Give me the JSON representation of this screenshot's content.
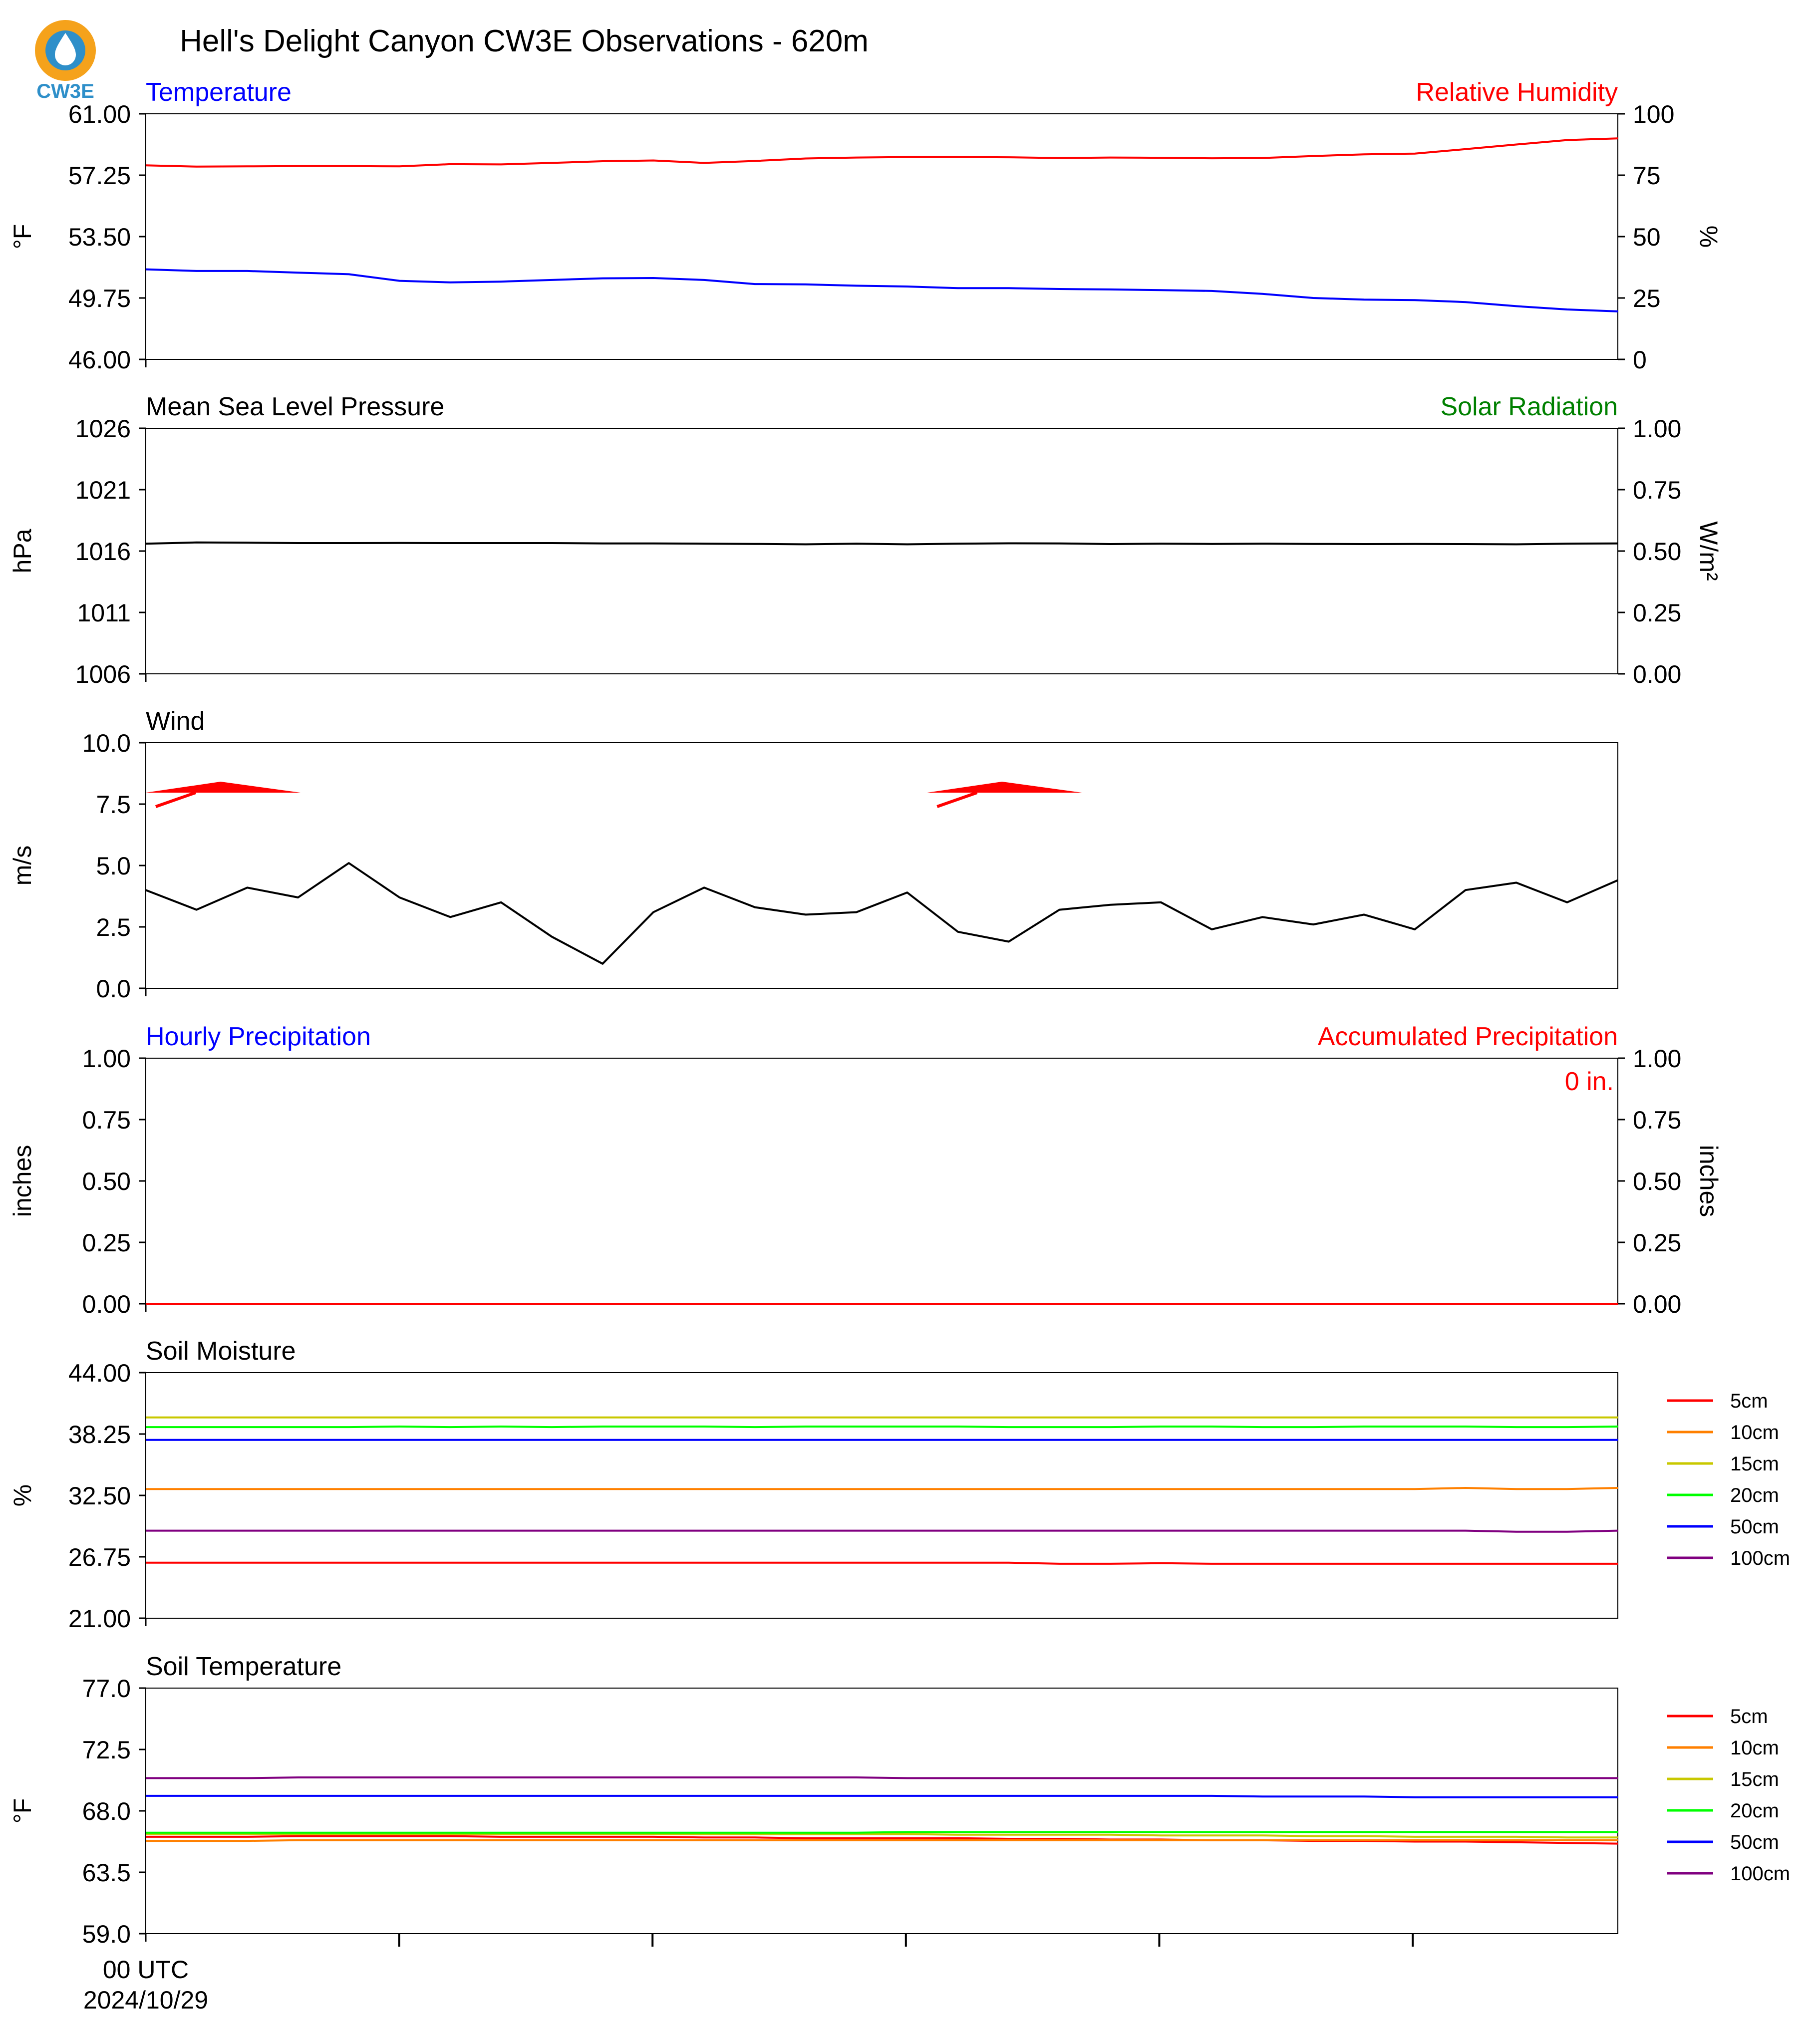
{
  "title": "Hell's Delight Canyon CW3E Observations - 620m",
  "logo": {
    "text": "CW3E",
    "icon": "cw3e-drop-logo",
    "colors": {
      "orange": "#F5A21B",
      "blue": "#2E8FC9"
    }
  },
  "x_axis": {
    "start_label": "00 UTC",
    "date_label": "2024/10/29"
  },
  "chart_data": [
    {
      "type": "line",
      "id": "temp_rh",
      "title_left": "Temperature",
      "title_right": "Relative Humidity",
      "title_left_color": "#0000FF",
      "title_right_color": "#FF0000",
      "ylabel": "°F",
      "ylabel_right": "%",
      "ylim": [
        46,
        61
      ],
      "yticks": [
        "61.00",
        "57.25",
        "53.50",
        "49.75",
        "46.00"
      ],
      "ylim_right": [
        0,
        100
      ],
      "yticks_right": [
        "100",
        "75",
        "50",
        "25",
        "0"
      ],
      "x": [
        0,
        1,
        2,
        3,
        4,
        5,
        6,
        7,
        8,
        9,
        10,
        11,
        12,
        13,
        14,
        15,
        16,
        17,
        18,
        19,
        20,
        21,
        22,
        23,
        24,
        25,
        26,
        27,
        28,
        29
      ],
      "series": [
        {
          "color": "#0000FF",
          "axis": "left",
          "values": [
            51.5,
            51.4,
            51.4,
            51.3,
            51.2,
            50.8,
            50.7,
            50.75,
            50.85,
            50.95,
            50.97,
            50.85,
            50.6,
            50.58,
            50.5,
            50.45,
            50.35,
            50.35,
            50.3,
            50.27,
            50.23,
            50.18,
            50.0,
            49.75,
            49.65,
            49.62,
            49.5,
            49.25,
            49.05,
            48.93
          ]
        },
        {
          "color": "#FF0000",
          "axis": "right",
          "values": [
            79.0,
            78.5,
            78.6,
            78.7,
            78.7,
            78.6,
            79.5,
            79.4,
            80.0,
            80.7,
            81.0,
            80.0,
            80.8,
            81.8,
            82.2,
            82.4,
            82.4,
            82.3,
            82.0,
            82.2,
            82.1,
            81.9,
            82.0,
            82.8,
            83.5,
            83.8,
            85.6,
            87.5,
            89.3,
            90.0
          ]
        }
      ]
    },
    {
      "type": "line",
      "id": "pressure",
      "title_left": "Mean Sea Level Pressure",
      "title_right": "Solar Radiation",
      "title_left_color": "#000000",
      "title_right_color": "#008000",
      "ylabel": "hPa",
      "ylabel_right": "W/m²",
      "ylim": [
        1006,
        1026
      ],
      "yticks": [
        "1026",
        "1021",
        "1016",
        "1011",
        "1006"
      ],
      "ylim_right": [
        0,
        1
      ],
      "yticks_right": [
        "1.00",
        "0.75",
        "0.50",
        "0.25",
        "0.00"
      ],
      "x": [
        0,
        1,
        2,
        3,
        4,
        5,
        6,
        7,
        8,
        9,
        10,
        11,
        12,
        13,
        14,
        15,
        16,
        17,
        18,
        19,
        20,
        21,
        22,
        23,
        24,
        25,
        26,
        27,
        28,
        29
      ],
      "series": [
        {
          "color": "#000000",
          "axis": "left",
          "values": [
            1016.6,
            1016.7,
            1016.68,
            1016.65,
            1016.65,
            1016.66,
            1016.65,
            1016.65,
            1016.65,
            1016.62,
            1016.62,
            1016.6,
            1016.58,
            1016.55,
            1016.6,
            1016.55,
            1016.6,
            1016.63,
            1016.62,
            1016.57,
            1016.6,
            1016.58,
            1016.6,
            1016.58,
            1016.57,
            1016.58,
            1016.57,
            1016.55,
            1016.6,
            1016.62
          ]
        }
      ]
    },
    {
      "type": "line",
      "id": "wind",
      "title_left": "Wind",
      "title_left_color": "#000000",
      "ylabel": "m/s",
      "ylim": [
        0,
        10
      ],
      "yticks": [
        "10.0",
        "7.5",
        "5.0",
        "2.5",
        "0.0"
      ],
      "x": [
        0,
        1,
        2,
        3,
        4,
        5,
        6,
        7,
        8,
        9,
        10,
        11,
        12,
        13,
        14,
        15,
        16,
        17,
        18,
        19,
        20,
        21,
        22,
        23,
        24,
        25,
        26,
        27,
        28,
        29
      ],
      "series": [
        {
          "color": "#000000",
          "axis": "left",
          "values": [
            4.0,
            3.2,
            4.1,
            3.7,
            5.1,
            3.7,
            2.9,
            3.5,
            2.1,
            1.0,
            3.1,
            4.1,
            3.3,
            3.0,
            3.1,
            3.9,
            2.3,
            1.9,
            3.2,
            3.4,
            3.5,
            2.4,
            2.9,
            2.6,
            3.0,
            2.4,
            4.0,
            4.3,
            3.5,
            4.4
          ]
        }
      ],
      "barbs": [
        {
          "x": 0,
          "color": "#FF0000"
        },
        {
          "x": 15,
          "color": "#FF0000"
        }
      ]
    },
    {
      "type": "line",
      "id": "precip",
      "title_left": "Hourly Precipitation",
      "title_right": "Accumulated Precipitation",
      "title_left_color": "#0000FF",
      "title_right_color": "#FF0000",
      "ylabel": "inches",
      "ylabel_right": "inches",
      "ylim": [
        0,
        1
      ],
      "yticks": [
        "1.00",
        "0.75",
        "0.50",
        "0.25",
        "0.00"
      ],
      "ylim_right": [
        0,
        1
      ],
      "yticks_right": [
        "1.00",
        "0.75",
        "0.50",
        "0.25",
        "0.00"
      ],
      "annotation": "0 in.",
      "annotation_color": "#FF0000",
      "x": [
        0,
        29
      ],
      "series": [
        {
          "color": "#0000FF",
          "axis": "left",
          "values": [
            0,
            0
          ]
        },
        {
          "color": "#FF0000",
          "axis": "right",
          "values": [
            0,
            0
          ]
        }
      ]
    },
    {
      "type": "line",
      "id": "soil_moisture",
      "title_left": "Soil Moisture",
      "title_left_color": "#000000",
      "ylabel": "%",
      "ylim": [
        21,
        44
      ],
      "yticks": [
        "44.00",
        "38.25",
        "32.50",
        "26.75",
        "21.00"
      ],
      "x": [
        0,
        1,
        2,
        3,
        4,
        5,
        6,
        7,
        8,
        9,
        10,
        11,
        12,
        13,
        14,
        15,
        16,
        17,
        18,
        19,
        20,
        21,
        22,
        23,
        24,
        25,
        26,
        27,
        28,
        29
      ],
      "series": [
        {
          "name": "5cm",
          "color": "#FF0000",
          "values": [
            26.2,
            26.2,
            26.2,
            26.2,
            26.2,
            26.2,
            26.2,
            26.2,
            26.2,
            26.2,
            26.2,
            26.2,
            26.2,
            26.2,
            26.2,
            26.2,
            26.2,
            26.2,
            26.1,
            26.1,
            26.15,
            26.1,
            26.1,
            26.1,
            26.1,
            26.1,
            26.1,
            26.1,
            26.1,
            26.1
          ]
        },
        {
          "name": "10cm",
          "color": "#FF8000",
          "values": [
            33.1,
            33.1,
            33.1,
            33.1,
            33.1,
            33.1,
            33.1,
            33.1,
            33.1,
            33.1,
            33.1,
            33.1,
            33.1,
            33.1,
            33.1,
            33.1,
            33.1,
            33.1,
            33.1,
            33.1,
            33.1,
            33.1,
            33.1,
            33.1,
            33.1,
            33.1,
            33.2,
            33.1,
            33.1,
            33.2
          ]
        },
        {
          "name": "15cm",
          "color": "#C8C800",
          "values": [
            39.8,
            39.8,
            39.8,
            39.8,
            39.8,
            39.8,
            39.8,
            39.8,
            39.8,
            39.8,
            39.8,
            39.8,
            39.8,
            39.8,
            39.8,
            39.8,
            39.8,
            39.8,
            39.8,
            39.8,
            39.8,
            39.8,
            39.8,
            39.8,
            39.8,
            39.8,
            39.8,
            39.8,
            39.8,
            39.8
          ]
        },
        {
          "name": "20cm",
          "color": "#00FF00",
          "values": [
            38.9,
            38.9,
            38.9,
            38.9,
            38.9,
            38.95,
            38.9,
            38.95,
            38.9,
            38.95,
            38.95,
            38.95,
            38.9,
            38.95,
            38.95,
            38.95,
            38.95,
            38.9,
            38.9,
            38.9,
            38.95,
            38.95,
            38.9,
            38.9,
            38.95,
            38.95,
            38.95,
            38.9,
            38.9,
            38.95
          ]
        },
        {
          "name": "50cm",
          "color": "#0000FF",
          "values": [
            37.7,
            37.7,
            37.7,
            37.7,
            37.7,
            37.7,
            37.7,
            37.7,
            37.7,
            37.7,
            37.7,
            37.7,
            37.7,
            37.7,
            37.7,
            37.7,
            37.7,
            37.7,
            37.7,
            37.7,
            37.7,
            37.7,
            37.7,
            37.7,
            37.7,
            37.7,
            37.7,
            37.7,
            37.7,
            37.7
          ]
        },
        {
          "name": "100cm",
          "color": "#800080",
          "values": [
            29.2,
            29.2,
            29.2,
            29.2,
            29.2,
            29.2,
            29.2,
            29.2,
            29.2,
            29.2,
            29.2,
            29.2,
            29.2,
            29.2,
            29.2,
            29.2,
            29.2,
            29.2,
            29.2,
            29.2,
            29.2,
            29.2,
            29.2,
            29.2,
            29.2,
            29.2,
            29.2,
            29.1,
            29.1,
            29.2
          ]
        }
      ]
    },
    {
      "type": "line",
      "id": "soil_temperature",
      "title_left": "Soil Temperature",
      "title_left_color": "#000000",
      "ylabel": "°F",
      "ylim": [
        59,
        77
      ],
      "yticks": [
        "77.0",
        "72.5",
        "68.0",
        "63.5",
        "59.0"
      ],
      "x": [
        0,
        1,
        2,
        3,
        4,
        5,
        6,
        7,
        8,
        9,
        10,
        11,
        12,
        13,
        14,
        15,
        16,
        17,
        18,
        19,
        20,
        21,
        22,
        23,
        24,
        25,
        26,
        27,
        28,
        29
      ],
      "series": [
        {
          "name": "5cm",
          "color": "#FF0000",
          "values": [
            66.1,
            66.1,
            66.1,
            66.15,
            66.15,
            66.15,
            66.15,
            66.1,
            66.1,
            66.1,
            66.1,
            66.05,
            66.05,
            66.0,
            66.0,
            66.0,
            66.0,
            65.95,
            65.95,
            65.9,
            65.9,
            65.85,
            65.85,
            65.8,
            65.8,
            65.75,
            65.75,
            65.7,
            65.65,
            65.6
          ]
        },
        {
          "name": "10cm",
          "color": "#FF8000",
          "values": [
            65.8,
            65.8,
            65.8,
            65.85,
            65.85,
            65.85,
            65.85,
            65.85,
            65.85,
            65.85,
            65.85,
            65.85,
            65.85,
            65.85,
            65.85,
            65.85,
            65.85,
            65.85,
            65.85,
            65.85,
            65.85,
            65.85,
            65.85,
            65.85,
            65.85,
            65.85,
            65.85,
            65.85,
            65.85,
            65.85
          ]
        },
        {
          "name": "15cm",
          "color": "#C8C800",
          "values": [
            66.3,
            66.3,
            66.3,
            66.3,
            66.3,
            66.3,
            66.3,
            66.3,
            66.3,
            66.3,
            66.3,
            66.3,
            66.3,
            66.3,
            66.3,
            66.3,
            66.25,
            66.25,
            66.25,
            66.25,
            66.2,
            66.2,
            66.2,
            66.15,
            66.15,
            66.1,
            66.1,
            66.1,
            66.05,
            66.05
          ]
        },
        {
          "name": "20cm",
          "color": "#00FF00",
          "values": [
            66.4,
            66.4,
            66.4,
            66.4,
            66.4,
            66.4,
            66.4,
            66.4,
            66.4,
            66.4,
            66.4,
            66.4,
            66.4,
            66.4,
            66.4,
            66.45,
            66.45,
            66.45,
            66.45,
            66.45,
            66.45,
            66.45,
            66.45,
            66.45,
            66.45,
            66.45,
            66.45,
            66.45,
            66.45,
            66.45
          ]
        },
        {
          "name": "50cm",
          "color": "#0000FF",
          "values": [
            69.1,
            69.1,
            69.1,
            69.1,
            69.1,
            69.1,
            69.1,
            69.1,
            69.1,
            69.1,
            69.1,
            69.1,
            69.1,
            69.1,
            69.1,
            69.1,
            69.1,
            69.1,
            69.1,
            69.1,
            69.1,
            69.1,
            69.05,
            69.05,
            69.05,
            69.0,
            69.0,
            69.0,
            69.0,
            69.0
          ]
        },
        {
          "name": "100cm",
          "color": "#800080",
          "values": [
            70.4,
            70.4,
            70.4,
            70.45,
            70.45,
            70.45,
            70.45,
            70.45,
            70.45,
            70.45,
            70.45,
            70.45,
            70.45,
            70.45,
            70.45,
            70.4,
            70.4,
            70.4,
            70.4,
            70.4,
            70.4,
            70.4,
            70.4,
            70.4,
            70.4,
            70.4,
            70.4,
            70.4,
            70.4,
            70.4
          ]
        }
      ]
    }
  ]
}
